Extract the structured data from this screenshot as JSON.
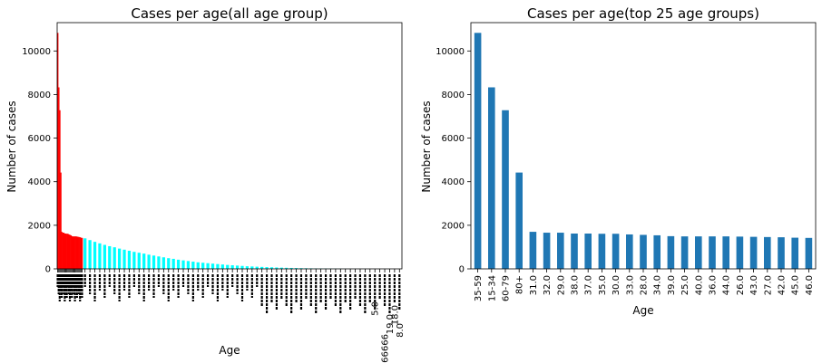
{
  "chart_data": [
    {
      "type": "bar",
      "title": "Cases per age(all age group)",
      "xlabel": "Age",
      "ylabel": "Number of cases",
      "ylim": [
        0,
        11300
      ],
      "yticks": [
        0,
        2000,
        4000,
        6000,
        8000,
        10000
      ],
      "grid": false,
      "red_group_count": 25,
      "colors": {
        "top_group": "#ff0000",
        "rest": "#00ffff"
      },
      "values": [
        10830,
        8330,
        7280,
        4420,
        1700,
        1660,
        1660,
        1620,
        1620,
        1610,
        1610,
        1580,
        1560,
        1540,
        1500,
        1490,
        1490,
        1490,
        1490,
        1480,
        1470,
        1460,
        1450,
        1430,
        1420,
        1400,
        1320,
        1240,
        1170,
        1100,
        1040,
        990,
        930,
        880,
        830,
        780,
        740,
        700,
        650,
        610,
        570,
        530,
        490,
        460,
        420,
        390,
        360,
        330,
        300,
        280,
        260,
        240,
        220,
        200,
        180,
        165,
        150,
        135,
        120,
        110,
        100,
        90,
        80,
        72,
        64,
        57,
        50,
        44,
        38,
        33,
        28,
        24,
        20,
        17,
        14,
        11,
        9,
        7,
        5,
        4,
        3,
        2,
        2,
        1,
        1,
        1,
        1,
        1,
        1,
        1
      ],
      "visible_tick_labels": [
        "5.0",
        "0.666666",
        "18.0",
        "8.0",
        "19.0"
      ]
    },
    {
      "type": "bar",
      "title": "Cases per age(top 25 age groups)",
      "xlabel": "Age",
      "ylabel": "Number of cases",
      "ylim": [
        0,
        11300
      ],
      "yticks": [
        0,
        2000,
        4000,
        6000,
        8000,
        10000
      ],
      "grid": false,
      "color": "#1f77b4",
      "categories": [
        "35-59",
        "15-34",
        "60-79",
        "80+",
        "31.0",
        "32.0",
        "29.0",
        "38.0",
        "37.0",
        "35.0",
        "30.0",
        "33.0",
        "28.0",
        "34.0",
        "39.0",
        "25.0",
        "40.0",
        "36.0",
        "44.0",
        "26.0",
        "43.0",
        "27.0",
        "42.0",
        "45.0",
        "46.0"
      ],
      "values": [
        10830,
        8330,
        7280,
        4420,
        1700,
        1660,
        1660,
        1620,
        1620,
        1610,
        1610,
        1580,
        1560,
        1540,
        1500,
        1490,
        1490,
        1490,
        1490,
        1480,
        1470,
        1460,
        1450,
        1430,
        1420
      ]
    }
  ]
}
